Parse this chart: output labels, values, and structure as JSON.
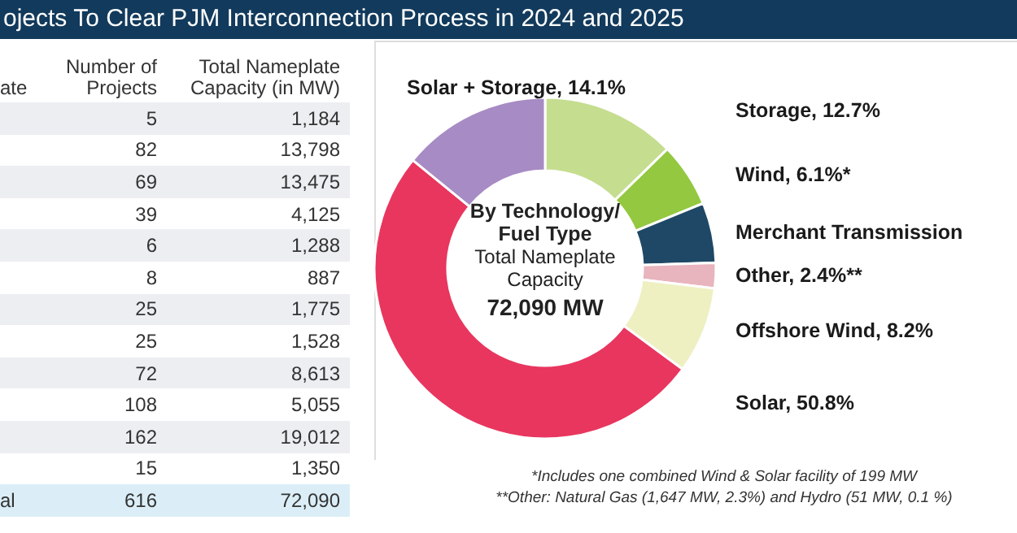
{
  "chart_data": [
    {
      "type": "other",
      "title": "ojects To Clear PJM Interconnection Process in 2024 and 2025",
      "annotations": [
        "ate",
        "Number of Projects",
        "Total Nameplate Capacity (in MW)",
        "5",
        "1,184",
        "82",
        "13,798",
        "69",
        "13,475",
        "39",
        "4,125",
        "6",
        "1,288",
        "8",
        "887",
        "25",
        "1,775",
        "25",
        "1,528",
        "72",
        "8,613",
        "108",
        "5,055",
        "162",
        "19,012",
        "15",
        "1,350",
        "616",
        "72,090",
        "al"
      ]
    },
    {
      "type": "donut",
      "title": "By Technology/ Fuel Type",
      "subtitle": "Total Nameplate Capacity",
      "categories": [
        "Storage",
        "Wind",
        "Merchant Transmission",
        "Other",
        "Offshore Wind",
        "Solar",
        "Solar + Storage"
      ],
      "values": [
        12.7,
        6.1,
        5.7,
        2.4,
        8.2,
        50.8,
        14.1
      ],
      "value_labels": [
        "12.7%",
        "6.1%*",
        null,
        "2.4%**",
        "8.2%",
        "50.8%",
        "14.1%"
      ],
      "colors": [
        "#c5dd8f",
        "#93c840",
        "#1f4866",
        "#e8b4bd",
        "#eef0c2",
        "#e8365f",
        "#a78bc4"
      ],
      "annotations": [
        "72,090 MW",
        "*Includes one combined Wind & Solar facility of 199 MW",
        "**Other: Natural Gas (1,647 MW, 2.3%) and Hydro (51 MW, 0.1 %)"
      ]
    }
  ]
}
